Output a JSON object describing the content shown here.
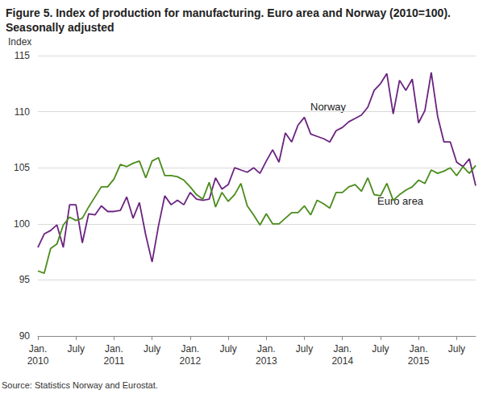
{
  "chart_data": {
    "type": "line",
    "title": "Figure 5. Index of production for manufacturing. Euro area and Norway (2010=100).\nSeasonally adjusted",
    "y_label": "Index",
    "source": "Source: Statistics Norway and Eurostat.",
    "categories": [
      "Jan.\n2010",
      null,
      null,
      null,
      null,
      null,
      "July",
      null,
      null,
      null,
      null,
      null,
      "Jan.\n2011",
      null,
      null,
      null,
      null,
      null,
      "July",
      null,
      null,
      null,
      null,
      null,
      "Jan.\n2012",
      null,
      null,
      null,
      null,
      null,
      "July",
      null,
      null,
      null,
      null,
      null,
      "Jan.\n2013",
      null,
      null,
      null,
      null,
      null,
      "July",
      null,
      null,
      null,
      null,
      null,
      "Jan.\n2014",
      null,
      null,
      null,
      null,
      null,
      "July",
      null,
      null,
      null,
      null,
      null,
      "Jan.\n2015",
      null,
      null,
      null,
      null,
      null,
      "July",
      null,
      null,
      null
    ],
    "series": [
      {
        "name": "Norway",
        "color": "#6b2380",
        "values": [
          97.9,
          99.1,
          99.4,
          99.9,
          97.9,
          101.7,
          101.7,
          98.3,
          100.9,
          100.8,
          101.6,
          101.1,
          101.1,
          101.2,
          102.4,
          100.5,
          101.9,
          99.0,
          96.6,
          99.8,
          102.5,
          101.7,
          102.1,
          101.7,
          102.8,
          102.2,
          102.1,
          102.2,
          104.1,
          103.1,
          103.5,
          105.0,
          104.8,
          104.6,
          105.0,
          104.5,
          105.6,
          106.6,
          105.5,
          108.1,
          107.3,
          108.8,
          109.5,
          108.0,
          107.8,
          107.6,
          107.3,
          108.3,
          108.6,
          109.1,
          109.4,
          109.7,
          110.4,
          111.9,
          112.5,
          113.4,
          109.8,
          112.8,
          111.9,
          112.9,
          109.0,
          110.1,
          113.5,
          109.6,
          107.3,
          107.3,
          105.5,
          105.1,
          105.8,
          103.4
        ]
      },
      {
        "name": "Euro area",
        "color": "#4a8c1c",
        "values": [
          95.8,
          95.6,
          97.8,
          98.2,
          99.9,
          100.6,
          100.3,
          100.5,
          101.5,
          102.4,
          103.3,
          103.3,
          104.0,
          105.3,
          105.1,
          105.4,
          105.6,
          104.1,
          105.6,
          105.9,
          104.3,
          104.3,
          104.2,
          103.9,
          103.3,
          102.6,
          102.2,
          103.7,
          101.5,
          102.8,
          102.0,
          102.6,
          103.6,
          101.6,
          100.8,
          99.9,
          100.9,
          100.0,
          100.0,
          100.5,
          101.0,
          101.0,
          101.6,
          100.8,
          102.1,
          101.8,
          101.4,
          102.8,
          102.8,
          103.3,
          103.5,
          102.9,
          104.1,
          102.6,
          102.5,
          103.6,
          102.1,
          102.6,
          103.0,
          103.3,
          103.9,
          103.6,
          104.8,
          104.5,
          104.7,
          105.0,
          104.3,
          105.1,
          104.5,
          105.2
        ]
      }
    ],
    "annotations": [
      {
        "text": "Norway",
        "series": "Norway"
      },
      {
        "text": "Euro area",
        "series": "Euro area"
      }
    ],
    "ylim": [
      90,
      115
    ],
    "yticks": [
      90,
      95,
      100,
      105,
      110,
      115
    ],
    "grid": true
  }
}
